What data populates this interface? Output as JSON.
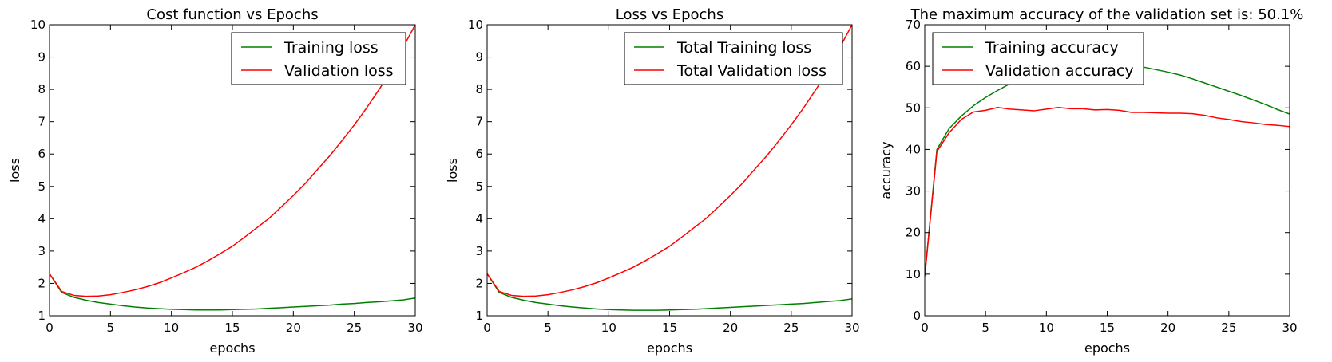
{
  "chart_data": [
    {
      "type": "line",
      "title": "Cost function vs Epochs",
      "xlabel": "epochs",
      "ylabel": "loss",
      "xlim": [
        0,
        30
      ],
      "ylim": [
        1,
        10
      ],
      "xticks": [
        0,
        5,
        10,
        15,
        20,
        25,
        30
      ],
      "yticks": [
        1,
        2,
        3,
        4,
        5,
        6,
        7,
        8,
        9,
        10
      ],
      "grid": false,
      "legend_position": "top-right",
      "x": [
        0,
        1,
        2,
        3,
        4,
        5,
        6,
        7,
        8,
        9,
        10,
        11,
        12,
        13,
        14,
        15,
        16,
        17,
        18,
        19,
        20,
        21,
        22,
        23,
        24,
        25,
        26,
        27,
        28,
        29,
        30
      ],
      "series": [
        {
          "name": "Training loss",
          "color": "#008000",
          "values": [
            2.3,
            1.72,
            1.57,
            1.48,
            1.41,
            1.36,
            1.31,
            1.27,
            1.24,
            1.22,
            1.2,
            1.19,
            1.18,
            1.18,
            1.18,
            1.19,
            1.2,
            1.21,
            1.23,
            1.25,
            1.27,
            1.29,
            1.31,
            1.33,
            1.36,
            1.38,
            1.41,
            1.43,
            1.46,
            1.49,
            1.55
          ]
        },
        {
          "name": "Validation loss",
          "color": "#ff0000",
          "values": [
            2.3,
            1.75,
            1.63,
            1.6,
            1.61,
            1.65,
            1.72,
            1.8,
            1.9,
            2.02,
            2.17,
            2.33,
            2.5,
            2.7,
            2.92,
            3.15,
            3.43,
            3.72,
            4.01,
            4.36,
            4.72,
            5.1,
            5.53,
            5.95,
            6.42,
            6.9,
            7.42,
            7.98,
            8.55,
            9.3,
            10.0
          ]
        }
      ]
    },
    {
      "type": "line",
      "title": "Loss vs Epochs",
      "xlabel": "epochs",
      "ylabel": "loss",
      "xlim": [
        0,
        30
      ],
      "ylim": [
        1,
        10
      ],
      "xticks": [
        0,
        5,
        10,
        15,
        20,
        25,
        30
      ],
      "yticks": [
        1,
        2,
        3,
        4,
        5,
        6,
        7,
        8,
        9,
        10
      ],
      "grid": false,
      "legend_position": "top-right",
      "x": [
        0,
        1,
        2,
        3,
        4,
        5,
        6,
        7,
        8,
        9,
        10,
        11,
        12,
        13,
        14,
        15,
        16,
        17,
        18,
        19,
        20,
        21,
        22,
        23,
        24,
        25,
        26,
        27,
        28,
        29,
        30
      ],
      "series": [
        {
          "name": "Total Training loss",
          "color": "#008000",
          "values": [
            2.3,
            1.72,
            1.57,
            1.48,
            1.41,
            1.36,
            1.31,
            1.27,
            1.24,
            1.21,
            1.19,
            1.18,
            1.17,
            1.17,
            1.17,
            1.18,
            1.19,
            1.2,
            1.22,
            1.24,
            1.26,
            1.28,
            1.3,
            1.32,
            1.34,
            1.36,
            1.38,
            1.41,
            1.44,
            1.47,
            1.52
          ]
        },
        {
          "name": "Total Validation loss",
          "color": "#ff0000",
          "values": [
            2.3,
            1.75,
            1.63,
            1.6,
            1.61,
            1.65,
            1.72,
            1.8,
            1.9,
            2.02,
            2.17,
            2.33,
            2.5,
            2.7,
            2.92,
            3.15,
            3.43,
            3.72,
            4.01,
            4.36,
            4.72,
            5.1,
            5.53,
            5.95,
            6.42,
            6.9,
            7.42,
            7.98,
            8.55,
            9.3,
            10.0
          ]
        }
      ]
    },
    {
      "type": "line",
      "title": "The maximum accuracy of the validation set is: 50.1%",
      "xlabel": "epochs",
      "ylabel": "accuracy",
      "xlim": [
        0,
        30
      ],
      "ylim": [
        0,
        70
      ],
      "xticks": [
        0,
        5,
        10,
        15,
        20,
        25,
        30
      ],
      "yticks": [
        0,
        10,
        20,
        30,
        40,
        50,
        60,
        70
      ],
      "grid": false,
      "legend_position": "top-left",
      "x": [
        0,
        1,
        2,
        3,
        4,
        5,
        6,
        7,
        8,
        9,
        10,
        11,
        12,
        13,
        14,
        15,
        16,
        17,
        18,
        19,
        20,
        21,
        22,
        23,
        24,
        25,
        26,
        27,
        28,
        29,
        30
      ],
      "series": [
        {
          "name": "Training accuracy",
          "color": "#008000",
          "values": [
            9.5,
            40.0,
            45.0,
            48.0,
            50.5,
            52.5,
            54.2,
            55.8,
            57.1,
            58.2,
            59.2,
            60.0,
            60.6,
            61.0,
            61.2,
            61.1,
            60.8,
            60.3,
            59.8,
            59.2,
            58.6,
            57.9,
            57.0,
            56.0,
            55.0,
            54.0,
            53.0,
            51.9,
            50.8,
            49.6,
            48.5
          ]
        },
        {
          "name": "Validation accuracy",
          "color": "#ff0000",
          "values": [
            9.5,
            39.5,
            44.0,
            47.2,
            49.0,
            49.4,
            50.1,
            49.7,
            49.5,
            49.3,
            49.7,
            50.1,
            49.8,
            49.8,
            49.5,
            49.6,
            49.4,
            48.9,
            48.9,
            48.8,
            48.7,
            48.7,
            48.6,
            48.2,
            47.6,
            47.2,
            46.7,
            46.4,
            46.0,
            45.8,
            45.5
          ]
        }
      ]
    }
  ]
}
